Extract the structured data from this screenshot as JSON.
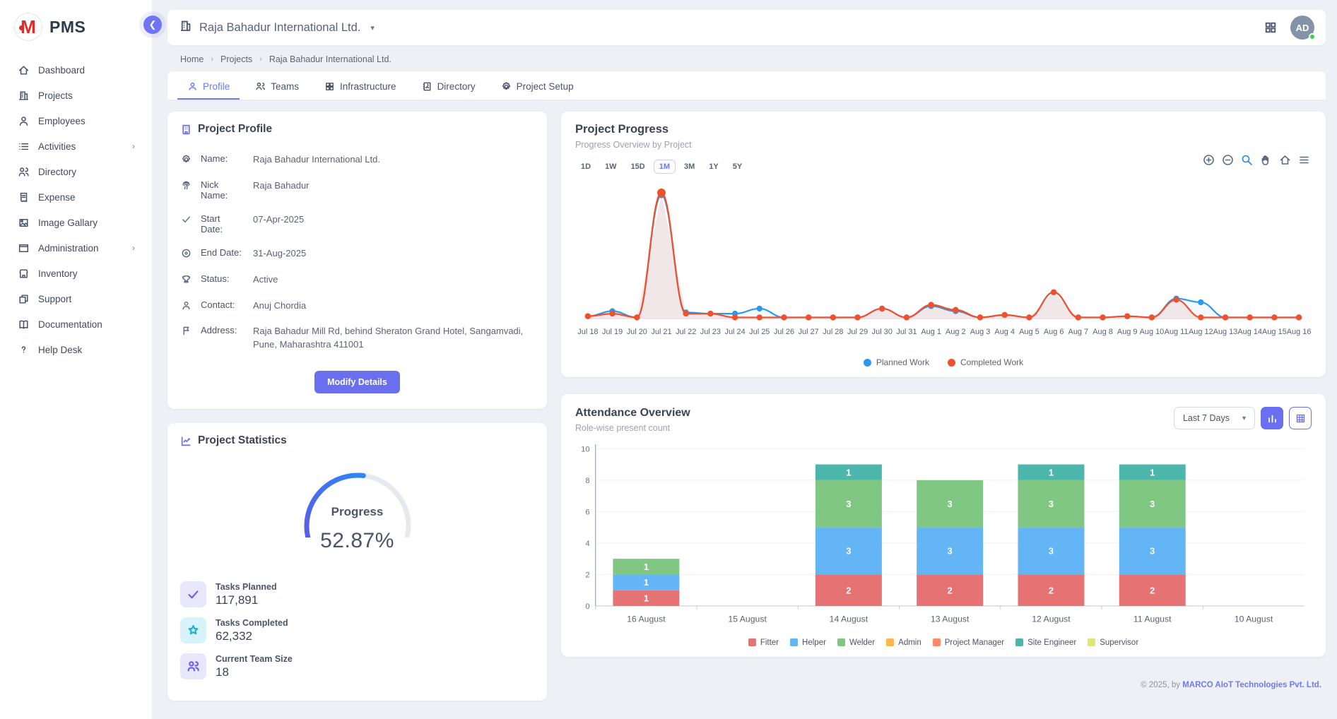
{
  "brand": {
    "logo_letter": "M",
    "name": "PMS"
  },
  "sidebar": {
    "items": [
      {
        "label": "Dashboard",
        "icon": "home",
        "chevron": false
      },
      {
        "label": "Projects",
        "icon": "building",
        "chevron": false
      },
      {
        "label": "Employees",
        "icon": "person",
        "chevron": false
      },
      {
        "label": "Activities",
        "icon": "list",
        "chevron": true
      },
      {
        "label": "Directory",
        "icon": "people",
        "chevron": false
      },
      {
        "label": "Expense",
        "icon": "receipt",
        "chevron": false
      },
      {
        "label": "Image Gallary",
        "icon": "image",
        "chevron": false
      },
      {
        "label": "Administration",
        "icon": "window",
        "chevron": true
      },
      {
        "label": "Inventory",
        "icon": "store",
        "chevron": false
      },
      {
        "label": "Support",
        "icon": "copy",
        "chevron": false
      },
      {
        "label": "Documentation",
        "icon": "book",
        "chevron": false
      },
      {
        "label": "Help Desk",
        "icon": "question",
        "chevron": false
      }
    ]
  },
  "header": {
    "company": "Raja Bahadur International Ltd.",
    "avatar": "AD"
  },
  "breadcrumb": [
    "Home",
    "Projects",
    "Raja Bahadur International Ltd."
  ],
  "tabs": [
    {
      "label": "Profile",
      "icon": "person",
      "active": true
    },
    {
      "label": "Teams",
      "icon": "people",
      "active": false
    },
    {
      "label": "Infrastructure",
      "icon": "grid",
      "active": false
    },
    {
      "label": "Directory",
      "icon": "contact",
      "active": false
    },
    {
      "label": "Project Setup",
      "icon": "gear",
      "active": false
    }
  ],
  "profile_card": {
    "title": "Project Profile",
    "fields": [
      {
        "label": "Name:",
        "value": "Raja Bahadur International Ltd.",
        "icon": "gear"
      },
      {
        "label": "Nick Name:",
        "value": "Raja Bahadur",
        "icon": "fingerprint"
      },
      {
        "label": "Start Date:",
        "value": "07-Apr-2025",
        "icon": "check"
      },
      {
        "label": "End Date:",
        "value": "31-Aug-2025",
        "icon": "target"
      },
      {
        "label": "Status:",
        "value": "Active",
        "icon": "trophy"
      },
      {
        "label": "Contact:",
        "value": "Anuj Chordia",
        "icon": "person"
      },
      {
        "label": "Address:",
        "value": "Raja Bahadur Mill Rd, behind Sheraton Grand Hotel, Sangamvadi, Pune, Maharashtra 411001",
        "icon": "flag"
      }
    ],
    "button_label": "Modify Details"
  },
  "stats_card": {
    "title": "Project Statistics",
    "gauge": {
      "label": "Progress",
      "value_pct": 52.87,
      "display": "52.87%"
    },
    "stats": [
      {
        "label": "Tasks Planned",
        "value": "117,891",
        "icon": "check",
        "tone": "purple"
      },
      {
        "label": "Tasks Completed",
        "value": "62,332",
        "icon": "star",
        "tone": "cyan"
      },
      {
        "label": "Current Team Size",
        "value": "18",
        "icon": "people",
        "tone": "purple"
      }
    ]
  },
  "progress_card": {
    "title": "Project Progress",
    "subtitle": "Progress Overview by Project",
    "ranges": [
      "1D",
      "1W",
      "15D",
      "1M",
      "3M",
      "1Y",
      "5Y"
    ],
    "active_range": "1M",
    "chart_data": {
      "type": "line",
      "x": [
        "Jul 18",
        "Jul 19",
        "Jul 20",
        "Jul 21",
        "Jul 22",
        "Jul 23",
        "Jul 24",
        "Jul 25",
        "Jul 26",
        "Jul 27",
        "Jul 28",
        "Jul 29",
        "Jul 30",
        "Jul 31",
        "Aug 1",
        "Aug 2",
        "Aug 3",
        "Aug 4",
        "Aug 5",
        "Aug 6",
        "Aug 7",
        "Aug 8",
        "Aug 9",
        "Aug 10",
        "Aug 11",
        "Aug 12",
        "Aug 13",
        "Aug 14",
        "Aug 15",
        "Aug 16"
      ],
      "series": [
        {
          "name": "Planned Work",
          "color": "#2b98f0",
          "values": [
            2,
            6,
            1,
            98,
            5,
            4,
            4,
            8,
            1,
            1,
            1,
            1,
            8,
            1,
            10,
            6,
            1,
            3,
            1,
            21,
            1,
            1,
            2,
            1,
            16,
            13,
            1,
            1,
            1,
            1
          ]
        },
        {
          "name": "Completed Work",
          "color": "#f0512c",
          "values": [
            2,
            4,
            1,
            100,
            4,
            4,
            1,
            1,
            1,
            1,
            1,
            1,
            8,
            1,
            11,
            7,
            1,
            3,
            1,
            21,
            1,
            1,
            2,
            1,
            15,
            1,
            1,
            1,
            1,
            1
          ]
        }
      ],
      "ylim": [
        0,
        105
      ],
      "grid": false,
      "legend_position": "bottom"
    }
  },
  "attendance_card": {
    "title": "Attendance Overview",
    "subtitle": "Role-wise present count",
    "filter_value": "Last 7 Days",
    "chart_data": {
      "type": "bar",
      "stacked": true,
      "categories": [
        "16 August",
        "15 August",
        "14 August",
        "13 August",
        "12 August",
        "11 August",
        "10 August"
      ],
      "series": [
        {
          "name": "Fitter",
          "color": "#e57373",
          "values": [
            1,
            0,
            2,
            2,
            2,
            2,
            0
          ]
        },
        {
          "name": "Helper",
          "color": "#64b5f6",
          "values": [
            1,
            0,
            3,
            3,
            3,
            3,
            0
          ]
        },
        {
          "name": "Welder",
          "color": "#81c784",
          "values": [
            1,
            0,
            3,
            3,
            3,
            3,
            0
          ]
        },
        {
          "name": "Admin",
          "color": "#ffb74d",
          "values": [
            0,
            0,
            0,
            0,
            0,
            0,
            0
          ]
        },
        {
          "name": "Project Manager",
          "color": "#ff8a65",
          "values": [
            0,
            0,
            0,
            0,
            0,
            0,
            0
          ]
        },
        {
          "name": "Site Engineer",
          "color": "#4db6ac",
          "values": [
            0,
            0,
            1,
            0,
            1,
            1,
            0
          ]
        },
        {
          "name": "Supervisor",
          "color": "#dce775",
          "values": [
            0,
            0,
            0,
            0,
            0,
            0,
            0
          ]
        }
      ],
      "ylim": [
        0,
        10
      ],
      "yticks": [
        0,
        2,
        4,
        6,
        8,
        10
      ],
      "grid": true,
      "legend_position": "bottom"
    }
  },
  "footer": {
    "prefix": "© 2025, by ",
    "link_text": "MARCO AIoT Technologies Pvt. Ltd."
  },
  "colors": {
    "accent": "#6a6ff0",
    "planned": "#2b98f0",
    "completed": "#f0512c",
    "online": "#3ecf4a"
  }
}
